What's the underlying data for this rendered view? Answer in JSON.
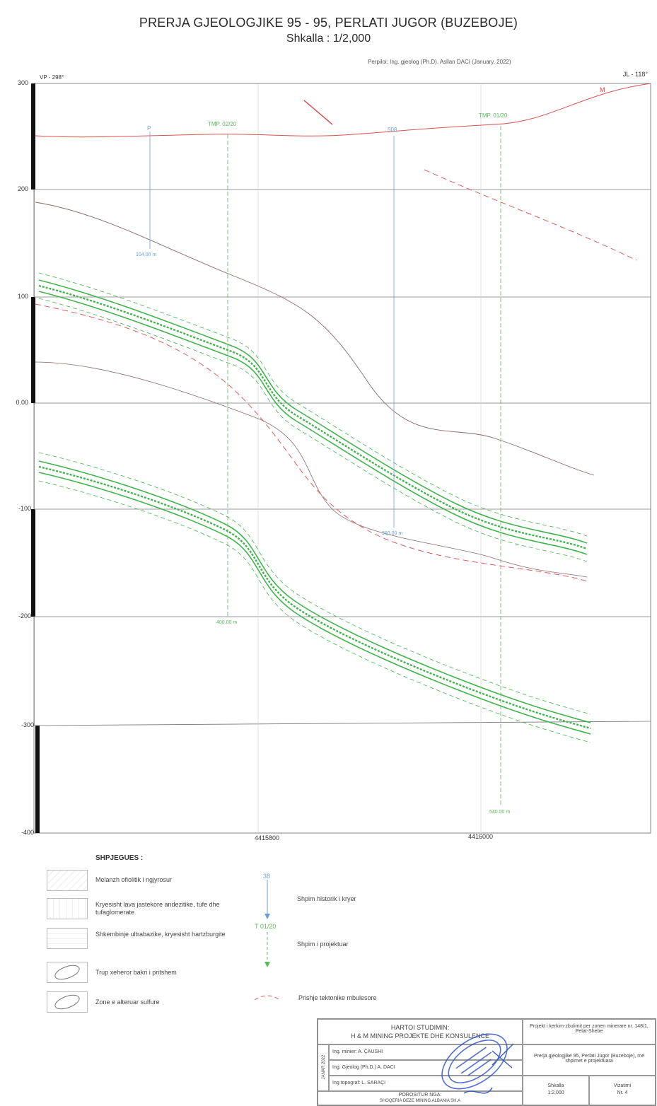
{
  "header": {
    "title": "PRERJA GJEOLOGJIKE 95 - 95, PERLATI JUGOR (BUZEBOJE)",
    "scale": "Shkalla : 1/2,000",
    "author": "Perpiloi: Ing. gjeolog (Ph.D). Asllan DACI (January, 2022)"
  },
  "section": {
    "left_direction": "VP - 298°",
    "right_direction": "JL - 118°",
    "elevation_labels": [
      "300",
      "200",
      "100",
      "0.00",
      "-100",
      "-200",
      "-300",
      "-400"
    ],
    "x_labels": [
      "4415800",
      "4416000"
    ],
    "drill_labels": {
      "hist_left": "P",
      "hist_mid": "508",
      "proj_1": "TMP. 02/20",
      "proj_2": "TMP. 01/20",
      "depth_hist_left": "104.00 m",
      "depth_hist_mid": "360.00 m",
      "depth_proj_1": "400.00 m",
      "depth_proj_2": "540.00 m"
    },
    "fault_label": "M",
    "colors": {
      "topo": "#d9534f",
      "fault": "#e05a5a",
      "ore": "#3fb44a",
      "contact": "#8a6a6a",
      "grid": "#777777",
      "proj_hole": "#5cb85c",
      "hist_hole": "#6a9fd8"
    }
  },
  "legend": {
    "title": "SHPJEGUES :",
    "items": [
      "Melanzh ofiolitik i ngjyrosur",
      "Kryesisht lava jastekore andezitike, tufe dhe tufaglomerate",
      "Shkembinje ultrabazike, kryesisht hartzburgite",
      "Trup xeheror bakri i pritshem",
      "Zone e alteruar sulfure"
    ],
    "hist_drill_num": "38",
    "hist_drill_label": "Shpim historik i kryer",
    "proj_drill_num": "T 01/20",
    "proj_drill_label": "Shpim i projektuar",
    "fault_label": "Prishje tektonike mbulesore"
  },
  "titleblock": {
    "heading1": "HARTOI STUDIMIN:",
    "heading2": "H & M MINING PROJEKTE DHE KONSULENCE",
    "date_vertical": "JANAR 2022",
    "person1": "Ing. minier: A. ÇAUSHI",
    "person2": "Ing. Gjeolog (Ph.D.) A. DACI",
    "person3": "Ing topograf: L. SARAÇI",
    "approved1": "POROSITUR NGA:",
    "approved2": "SHOQERIA DEZE MINING ALBANIA SH.A",
    "project": "Projekt i kerkim-zbulimit per zonen minerare nr. 148/1, Pelat-Shebe",
    "drawing": "Prerja gjeologjike 95, Perlati Jugor (Buzeboje), me shpimet e projektuara",
    "scale_label": "Shkalla",
    "scale_value": "1:2,000",
    "sheet_label": "Vizatimi",
    "sheet_value": "Nr. 4"
  }
}
